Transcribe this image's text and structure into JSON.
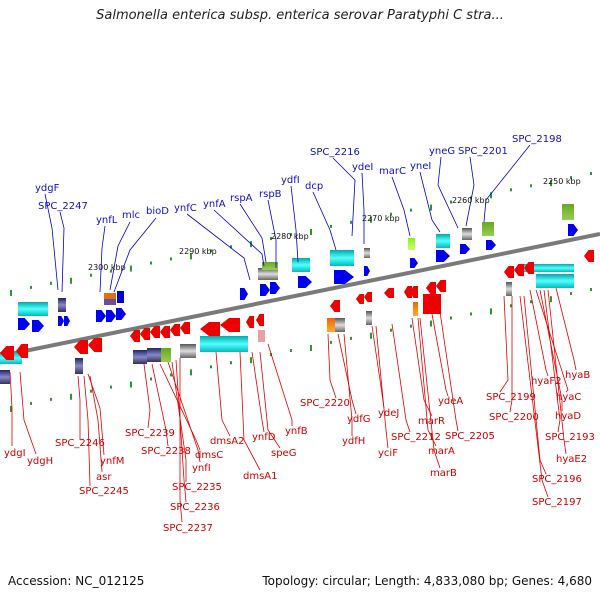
{
  "title": "Salmonella enterica subsp. enterica serovar Paratyphi C stra...",
  "footer": {
    "accession": "Accession: NC_012125",
    "summary": "Topology: circular; Length: 4,833,080 bp; Genes: 4,680"
  },
  "scale_ticks": [
    "2250 kbp",
    "2260 kbp",
    "2270 kbp",
    "2280 kbp",
    "2290 kbp",
    "2300 kbp"
  ],
  "top_labels": [
    "ydgF",
    "SPC_2247",
    "ynfL",
    "mlc",
    "bioD",
    "ynfC",
    "ynfA",
    "rspA",
    "rspB",
    "ydfI",
    "dcp",
    "SPC_2216",
    "ydeI",
    "marC",
    "yneI",
    "yneG",
    "SPC_2201",
    "SPC_2198"
  ],
  "bottom_labels": [
    "ydgI",
    "ydgH",
    "SPC_2246",
    "ynfM",
    "asr",
    "SPC_2245",
    "SPC_2239",
    "SPC_2238",
    "dmsC",
    "ynfI",
    "SPC_2235",
    "SPC_2236",
    "SPC_2237",
    "dmsA2",
    "dmsA1",
    "ynfD",
    "speG",
    "ynfB",
    "SPC_2220",
    "ydfG",
    "ydfH",
    "ydeJ",
    "yciF",
    "SPC_2212",
    "marR",
    "marA",
    "marB",
    "ydeA",
    "SPC_2205",
    "SPC_2199",
    "SPC_2200",
    "hyaF2",
    "hyaC",
    "hyaD",
    "hyaB",
    "SPC_2193",
    "hyaE2",
    "SPC_2196",
    "SPC_2197"
  ],
  "colors": {
    "forward": "#0000ee",
    "reverse": "#ee0000",
    "backbone": "#808080",
    "tick_green": "#2a9a2a"
  }
}
